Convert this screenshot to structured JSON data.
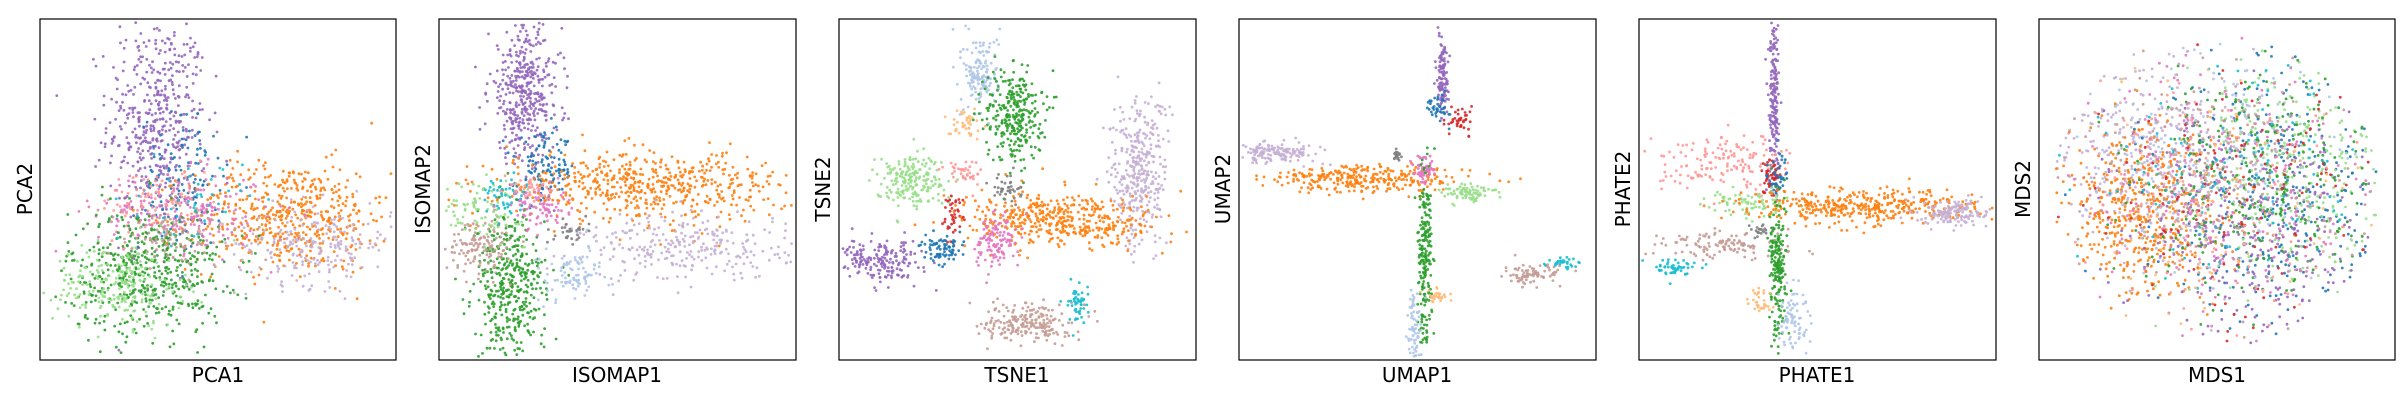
{
  "figure_title": "",
  "palette": {
    "c0": "#1f77b4",
    "c1": "#ff7f0e",
    "c2": "#2ca02c",
    "c3": "#d62728",
    "c4": "#9467bd",
    "c5": "#8c564b",
    "c6": "#e377c2",
    "c7": "#7f7f7f",
    "c9": "#17becf",
    "c10": "#aec7e8",
    "c11": "#ffbb78",
    "c12": "#98df8a",
    "c13": "#ff9896",
    "c14": "#c5b0d5",
    "c15": "#c49c94"
  },
  "chart_data": [
    {
      "type": "scatter",
      "title": "",
      "xlabel": "PCA1",
      "ylabel": "PCA2",
      "xlim": [
        0,
        100
      ],
      "ylim": [
        0,
        100
      ],
      "grid": false,
      "legend": "none",
      "clusters": [
        {
          "color": "c4",
          "center": [
            33,
            70
          ],
          "spread": [
            7,
            16
          ],
          "count": 480
        },
        {
          "color": "c0",
          "center": [
            40,
            52
          ],
          "spread": [
            6,
            10
          ],
          "count": 130
        },
        {
          "color": "c1",
          "center": [
            70,
            42
          ],
          "spread": [
            14,
            8
          ],
          "count": 520
        },
        {
          "color": "c14",
          "center": [
            77,
            34
          ],
          "spread": [
            11,
            6
          ],
          "count": 220
        },
        {
          "color": "c6",
          "center": [
            40,
            43
          ],
          "spread": [
            12,
            6
          ],
          "count": 200
        },
        {
          "color": "c13",
          "center": [
            33,
            46
          ],
          "spread": [
            8,
            5
          ],
          "count": 90
        },
        {
          "color": "c2",
          "center": [
            30,
            26
          ],
          "spread": [
            11,
            9
          ],
          "count": 500
        },
        {
          "color": "c12",
          "center": [
            22,
            22
          ],
          "spread": [
            9,
            6
          ],
          "count": 220
        },
        {
          "color": "c15",
          "center": [
            38,
            36
          ],
          "spread": [
            10,
            5
          ],
          "count": 90
        },
        {
          "color": "c9",
          "center": [
            43,
            46
          ],
          "spread": [
            7,
            6
          ],
          "count": 40
        }
      ]
    },
    {
      "type": "scatter",
      "title": "",
      "xlabel": "ISOMAP1",
      "ylabel": "ISOMAP2",
      "xlim": [
        0,
        100
      ],
      "ylim": [
        0,
        100
      ],
      "grid": false,
      "legend": "none",
      "clusters": [
        {
          "color": "c4",
          "center": [
            24,
            78
          ],
          "spread": [
            5,
            10
          ],
          "count": 420
        },
        {
          "color": "c0",
          "center": [
            30,
            56
          ],
          "spread": [
            4,
            5
          ],
          "count": 120
        },
        {
          "color": "c1",
          "center": [
            58,
            51
          ],
          "spread": [
            20,
            5
          ],
          "count": 560
        },
        {
          "color": "c14",
          "center": [
            70,
            33
          ],
          "spread": [
            15,
            5
          ],
          "count": 280
        },
        {
          "color": "c2",
          "center": [
            20,
            21
          ],
          "spread": [
            5,
            11
          ],
          "count": 420
        },
        {
          "color": "c15",
          "center": [
            12,
            34
          ],
          "spread": [
            5,
            4
          ],
          "count": 130
        },
        {
          "color": "c12",
          "center": [
            12,
            44
          ],
          "spread": [
            6,
            4
          ],
          "count": 90
        },
        {
          "color": "c9",
          "center": [
            18,
            48
          ],
          "spread": [
            3,
            3
          ],
          "count": 50
        },
        {
          "color": "c10",
          "center": [
            38,
            25
          ],
          "spread": [
            5,
            4
          ],
          "count": 90
        },
        {
          "color": "c6",
          "center": [
            28,
            45
          ],
          "spread": [
            4,
            3
          ],
          "count": 80
        },
        {
          "color": "c7",
          "center": [
            36,
            37
          ],
          "spread": [
            3,
            2
          ],
          "count": 30
        },
        {
          "color": "c13",
          "center": [
            26,
            50
          ],
          "spread": [
            3,
            2
          ],
          "count": 40
        }
      ]
    },
    {
      "type": "scatter",
      "title": "",
      "xlabel": "TSNE1",
      "ylabel": "TSNE2",
      "xlim": [
        0,
        100
      ],
      "ylim": [
        0,
        100
      ],
      "grid": false,
      "legend": "none",
      "clusters": [
        {
          "color": "c10",
          "center": [
            40,
            84
          ],
          "spread": [
            2.5,
            6
          ],
          "count": 150
        },
        {
          "color": "c2",
          "center": [
            49,
            72
          ],
          "spread": [
            4,
            7
          ],
          "count": 300
        },
        {
          "color": "c11",
          "center": [
            35,
            69
          ],
          "spread": [
            2.5,
            2
          ],
          "count": 40
        },
        {
          "color": "c12",
          "center": [
            20,
            53
          ],
          "spread": [
            5,
            4
          ],
          "count": 200
        },
        {
          "color": "c13",
          "center": [
            35,
            55
          ],
          "spread": [
            2.5,
            2
          ],
          "count": 40
        },
        {
          "color": "c3",
          "center": [
            32,
            43
          ],
          "spread": [
            1.5,
            3
          ],
          "count": 40
        },
        {
          "color": "c14",
          "center": [
            84,
            55
          ],
          "spread": [
            4,
            11
          ],
          "count": 350
        },
        {
          "color": "c1",
          "center": [
            63,
            41
          ],
          "spread": [
            14,
            4
          ],
          "count": 450
        },
        {
          "color": "c4",
          "center": [
            11,
            29
          ],
          "spread": [
            6,
            3
          ],
          "count": 200
        },
        {
          "color": "c0",
          "center": [
            29,
            32
          ],
          "spread": [
            3,
            2
          ],
          "count": 80
        },
        {
          "color": "c6",
          "center": [
            44,
            35
          ],
          "spread": [
            3,
            4
          ],
          "count": 120
        },
        {
          "color": "c15",
          "center": [
            53,
            11
          ],
          "spread": [
            6,
            3
          ],
          "count": 200
        },
        {
          "color": "c9",
          "center": [
            67,
            17
          ],
          "spread": [
            1.5,
            3
          ],
          "count": 50
        },
        {
          "color": "c7",
          "center": [
            47,
            50
          ],
          "spread": [
            2,
            2
          ],
          "count": 40
        }
      ]
    },
    {
      "type": "scatter",
      "title": "",
      "xlabel": "UMAP1",
      "ylabel": "UMAP2",
      "xlim": [
        0,
        100
      ],
      "ylim": [
        0,
        100
      ],
      "grid": false,
      "legend": "none",
      "clusters": [
        {
          "color": "c4",
          "center": [
            57,
            84
          ],
          "spread": [
            0.8,
            6
          ],
          "count": 120
        },
        {
          "color": "c0",
          "center": [
            56,
            74
          ],
          "spread": [
            1.5,
            2
          ],
          "count": 40
        },
        {
          "color": "c3",
          "center": [
            62,
            70
          ],
          "spread": [
            2,
            2
          ],
          "count": 40
        },
        {
          "color": "c14",
          "center": [
            11,
            61
          ],
          "spread": [
            6,
            1.5
          ],
          "count": 150
        },
        {
          "color": "c1",
          "center": [
            36,
            53
          ],
          "spread": [
            14,
            2
          ],
          "count": 300
        },
        {
          "color": "c6",
          "center": [
            52,
            56
          ],
          "spread": [
            1.5,
            2
          ],
          "count": 60
        },
        {
          "color": "c12",
          "center": [
            64,
            49
          ],
          "spread": [
            4,
            1.5
          ],
          "count": 80
        },
        {
          "color": "c2",
          "center": [
            52,
            30
          ],
          "spread": [
            1,
            13
          ],
          "count": 220
        },
        {
          "color": "c11",
          "center": [
            56,
            19
          ],
          "spread": [
            2,
            1
          ],
          "count": 30
        },
        {
          "color": "c10",
          "center": [
            49,
            8
          ],
          "spread": [
            1,
            6
          ],
          "count": 70
        },
        {
          "color": "c15",
          "center": [
            82,
            25
          ],
          "spread": [
            4,
            1.5
          ],
          "count": 80
        },
        {
          "color": "c9",
          "center": [
            91,
            28
          ],
          "spread": [
            2,
            1
          ],
          "count": 30
        },
        {
          "color": "c7",
          "center": [
            44,
            60
          ],
          "spread": [
            1,
            1
          ],
          "count": 20
        }
      ]
    },
    {
      "type": "scatter",
      "title": "",
      "xlabel": "PHATE1",
      "ylabel": "PHATE2",
      "xlim": [
        0,
        100
      ],
      "ylim": [
        0,
        100
      ],
      "grid": false,
      "legend": "none",
      "clusters": [
        {
          "color": "c4",
          "center": [
            38,
            75
          ],
          "spread": [
            0.8,
            13
          ],
          "count": 200
        },
        {
          "color": "c13",
          "center": [
            24,
            58
          ],
          "spread": [
            9,
            4
          ],
          "count": 150
        },
        {
          "color": "c3",
          "center": [
            37,
            54
          ],
          "spread": [
            1.5,
            2.5
          ],
          "count": 50
        },
        {
          "color": "c0",
          "center": [
            39,
            55
          ],
          "spread": [
            1.5,
            3
          ],
          "count": 40
        },
        {
          "color": "c12",
          "center": [
            30,
            46
          ],
          "spread": [
            6,
            2
          ],
          "count": 80
        },
        {
          "color": "c1",
          "center": [
            63,
            45
          ],
          "spread": [
            16,
            2.5
          ],
          "count": 400
        },
        {
          "color": "c14",
          "center": [
            89,
            43
          ],
          "spread": [
            5,
            2
          ],
          "count": 150
        },
        {
          "color": "c15",
          "center": [
            23,
            34
          ],
          "spread": [
            10,
            2
          ],
          "count": 120
        },
        {
          "color": "c9",
          "center": [
            10,
            27
          ],
          "spread": [
            3,
            1.5
          ],
          "count": 50
        },
        {
          "color": "c2",
          "center": [
            39,
            27
          ],
          "spread": [
            1.2,
            10
          ],
          "count": 200
        },
        {
          "color": "c11",
          "center": [
            34,
            17
          ],
          "spread": [
            1.5,
            2
          ],
          "count": 30
        },
        {
          "color": "c10",
          "center": [
            43,
            12
          ],
          "spread": [
            2,
            5
          ],
          "count": 80
        },
        {
          "color": "c7",
          "center": [
            34,
            38
          ],
          "spread": [
            1,
            1
          ],
          "count": 20
        }
      ]
    },
    {
      "type": "scatter",
      "title": "",
      "xlabel": "MDS1",
      "ylabel": "MDS2",
      "xlim": [
        0,
        100
      ],
      "ylim": [
        0,
        100
      ],
      "grid": false,
      "legend": "none",
      "shape": "disc",
      "clusters": [
        {
          "color": "c14",
          "center": [
            30,
            60
          ],
          "spread": [
            14,
            14
          ],
          "count": 380
        },
        {
          "color": "c1",
          "center": [
            29,
            43
          ],
          "spread": [
            11,
            12
          ],
          "count": 500
        },
        {
          "color": "c0",
          "center": [
            67,
            47
          ],
          "spread": [
            17,
            20
          ],
          "count": 360
        },
        {
          "color": "c12",
          "center": [
            71,
            57
          ],
          "spread": [
            15,
            17
          ],
          "count": 340
        },
        {
          "color": "c4",
          "center": [
            62,
            38
          ],
          "spread": [
            17,
            17
          ],
          "count": 320
        },
        {
          "color": "c2",
          "center": [
            60,
            52
          ],
          "spread": [
            17,
            17
          ],
          "count": 320
        },
        {
          "color": "c6",
          "center": [
            50,
            48
          ],
          "spread": [
            20,
            20
          ],
          "count": 260
        },
        {
          "color": "c15",
          "center": [
            47,
            52
          ],
          "spread": [
            20,
            20
          ],
          "count": 200
        },
        {
          "color": "c10",
          "center": [
            50,
            60
          ],
          "spread": [
            20,
            18
          ],
          "count": 160
        },
        {
          "color": "c3",
          "center": [
            55,
            45
          ],
          "spread": [
            20,
            20
          ],
          "count": 140
        },
        {
          "color": "c9",
          "center": [
            55,
            55
          ],
          "spread": [
            20,
            20
          ],
          "count": 120
        },
        {
          "color": "c13",
          "center": [
            45,
            50
          ],
          "spread": [
            20,
            20
          ],
          "count": 120
        },
        {
          "color": "c11",
          "center": [
            50,
            45
          ],
          "spread": [
            20,
            20
          ],
          "count": 100
        }
      ]
    }
  ]
}
